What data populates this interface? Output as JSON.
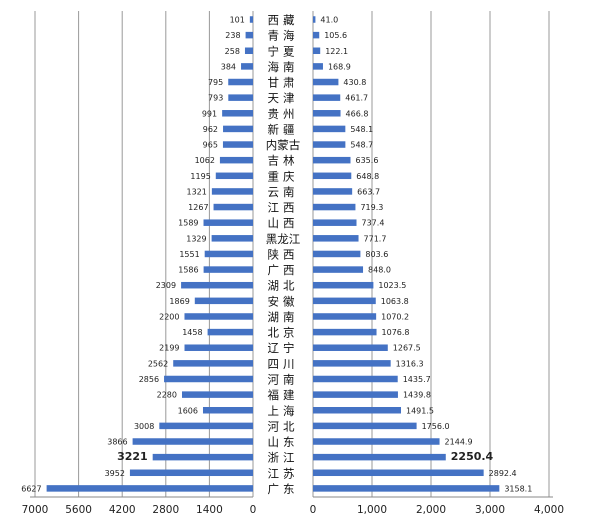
{
  "chart_data": {
    "type": "bar",
    "orientation": "horizontal",
    "layout": "back-to-back",
    "categories": [
      "西藏",
      "青海",
      "宁夏",
      "海南",
      "甘肃",
      "天津",
      "贵州",
      "新疆",
      "内蒙古",
      "吉林",
      "重庆",
      "云南",
      "江西",
      "山西",
      "黑龙江",
      "陕西",
      "广西",
      "湖北",
      "安徽",
      "湖南",
      "北京",
      "辽宁",
      "四川",
      "河南",
      "福建",
      "上海",
      "河北",
      "山东",
      "浙江",
      "江苏",
      "广东"
    ],
    "series": [
      {
        "side": "left",
        "values": [
          101,
          238,
          258,
          384,
          795,
          793,
          991,
          962,
          965,
          1062,
          1195,
          1321,
          1267,
          1589,
          1329,
          1551,
          1586,
          2309,
          1869,
          2200,
          1458,
          2199,
          2562,
          2856,
          2280,
          1606,
          3008,
          3866,
          3221,
          3952,
          6627
        ],
        "labels": [
          "101",
          "238",
          "258",
          "384",
          "795",
          "793",
          "991",
          "962",
          "965",
          "1062",
          "1195",
          "1321",
          "1267",
          "1589",
          "1329",
          "1551",
          "1586",
          "2309",
          "1869",
          "2200",
          "1458",
          "2199",
          "2562",
          "2856",
          "2280",
          "1606",
          "3008",
          "3866",
          "3221",
          "3952",
          "6627"
        ],
        "xlim": [
          0,
          7000
        ],
        "ticks": [
          "7000",
          "5600",
          "4200",
          "2800",
          "1400",
          "0"
        ],
        "tick_values": [
          7000,
          5600,
          4200,
          2800,
          1400,
          0
        ]
      },
      {
        "side": "right",
        "values": [
          41.0,
          105.6,
          122.1,
          168.9,
          430.8,
          461.7,
          466.8,
          548.1,
          548.7,
          635.6,
          648.8,
          663.7,
          719.3,
          737.4,
          771.7,
          803.6,
          848.0,
          1023.5,
          1063.8,
          1070.2,
          1076.8,
          1267.5,
          1316.3,
          1435.7,
          1439.8,
          1491.5,
          1756.0,
          2144.9,
          2250.4,
          2892.4,
          3158.1
        ],
        "labels": [
          "41.0",
          "105.6",
          "122.1",
          "168.9",
          "430.8",
          "461.7",
          "466.8",
          "548.1",
          "548.7",
          "635.6",
          "648.8",
          "663.7",
          "719.3",
          "737.4",
          "771.7",
          "803.6",
          "848.0",
          "1023.5",
          "1063.8",
          "1070.2",
          "1076.8",
          "1267.5",
          "1316.3",
          "1435.7",
          "1439.8",
          "1491.5",
          "1756.0",
          "2144.9",
          "2250.4",
          "2892.4",
          "3158.1"
        ],
        "xlim": [
          0,
          4000
        ],
        "ticks": [
          "0",
          "1,000",
          "2,000",
          "3,000",
          "4,000"
        ],
        "tick_values": [
          0,
          1000,
          2000,
          3000,
          4000
        ]
      }
    ],
    "highlighted_category": "浙江",
    "title": "",
    "xlabel": "",
    "ylabel": "",
    "grid": true,
    "bar_color": "#4472C4",
    "grid_color": "#999999"
  }
}
